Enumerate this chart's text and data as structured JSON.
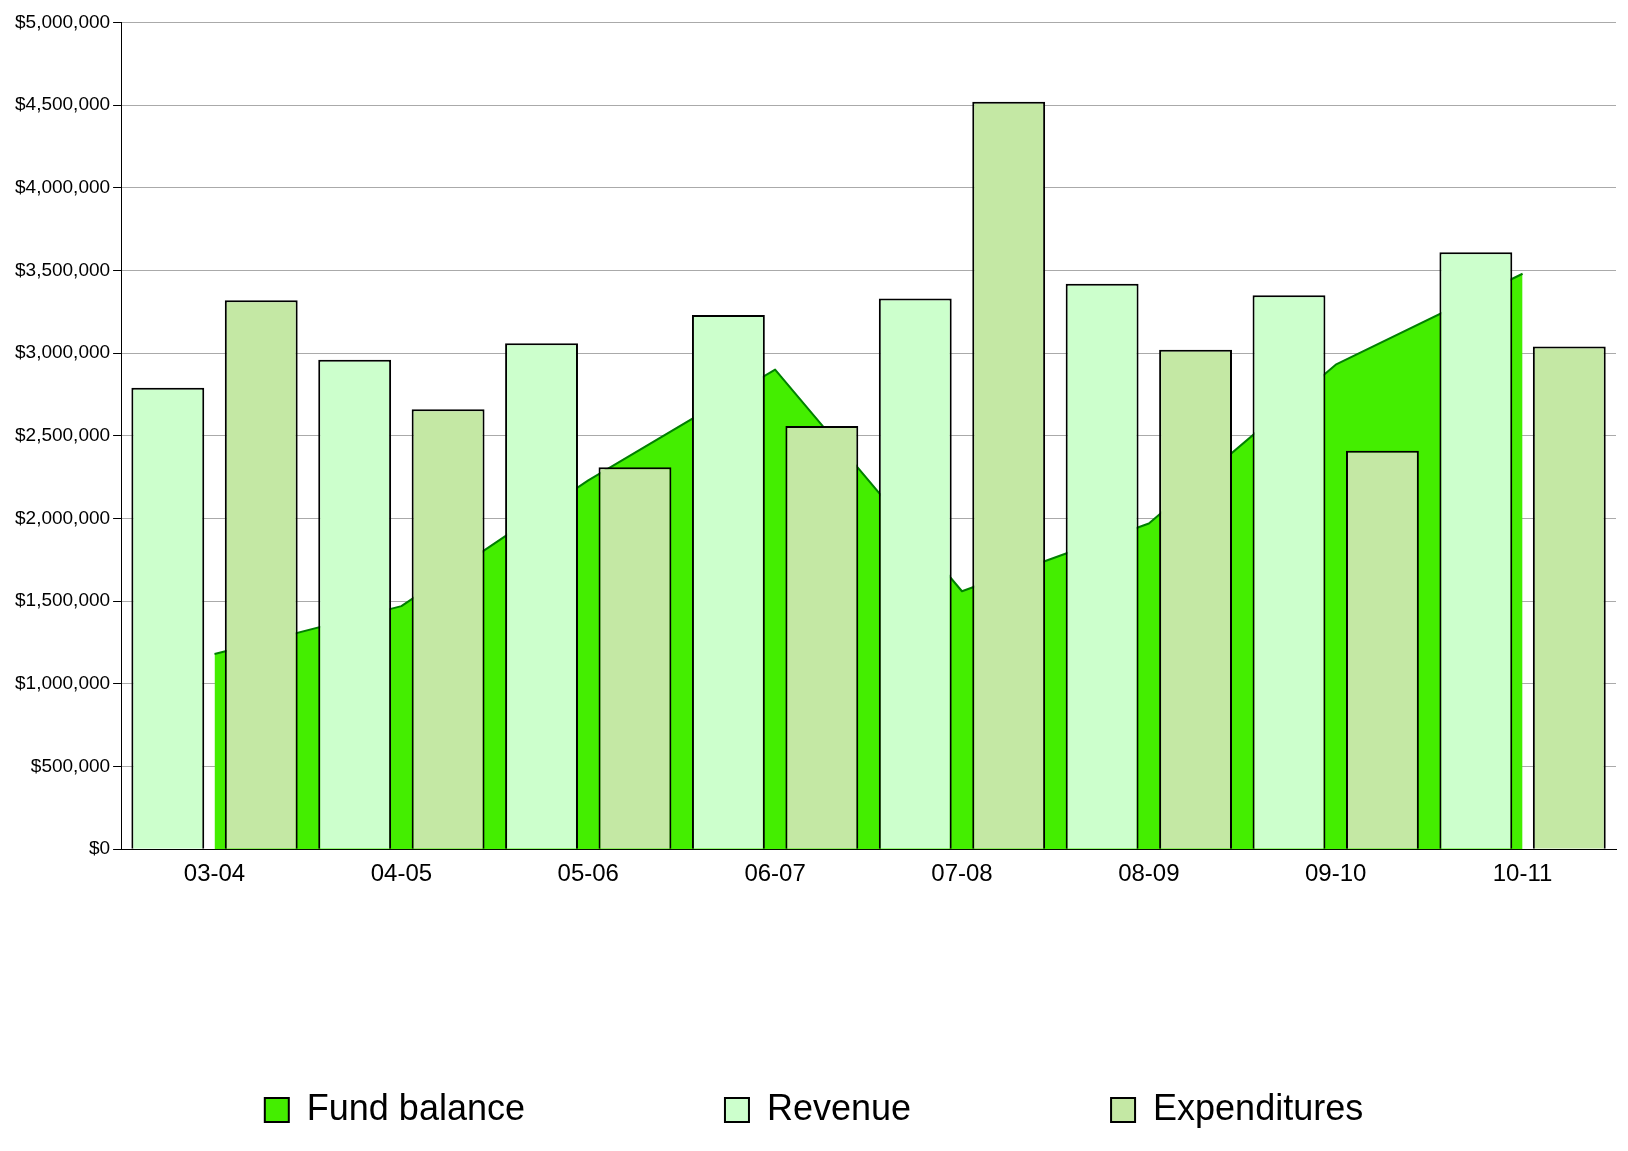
{
  "chart_data": {
    "type": "bar",
    "categories": [
      "03-04",
      "04-05",
      "05-06",
      "06-07",
      "07-08",
      "08-09",
      "09-10",
      "10-11"
    ],
    "series": [
      {
        "name": "Fund balance",
        "type": "area",
        "color": "#44ee00",
        "values": [
          1180000,
          1470000,
          2230000,
          2900000,
          1560000,
          1970000,
          2930000,
          3480000
        ]
      },
      {
        "name": "Revenue",
        "color": "#ccffcc",
        "values": [
          2790000,
          2960000,
          3060000,
          3230000,
          3330000,
          3420000,
          3350000,
          3610000
        ]
      },
      {
        "name": "Expenditures",
        "color": "#c4e8a4",
        "values": [
          3320000,
          2660000,
          2310000,
          2560000,
          4520000,
          3020000,
          2410000,
          3040000
        ]
      }
    ],
    "ylim": [
      0,
      5000000
    ],
    "yticks": [
      {
        "value": 0,
        "label": "$0"
      },
      {
        "value": 500000,
        "label": "$500,000"
      },
      {
        "value": 1000000,
        "label": "$1,000,000"
      },
      {
        "value": 1500000,
        "label": "$1,500,000"
      },
      {
        "value": 2000000,
        "label": "$2,000,000"
      },
      {
        "value": 2500000,
        "label": "$2,500,000"
      },
      {
        "value": 3000000,
        "label": "$3,000,000"
      },
      {
        "value": 3500000,
        "label": "$3,500,000"
      },
      {
        "value": 4000000,
        "label": "$4,000,000"
      },
      {
        "value": 4500000,
        "label": "$4,500,000"
      },
      {
        "value": 5000000,
        "label": "$5,000,000"
      }
    ],
    "grid": "y",
    "legend": "bottom"
  }
}
